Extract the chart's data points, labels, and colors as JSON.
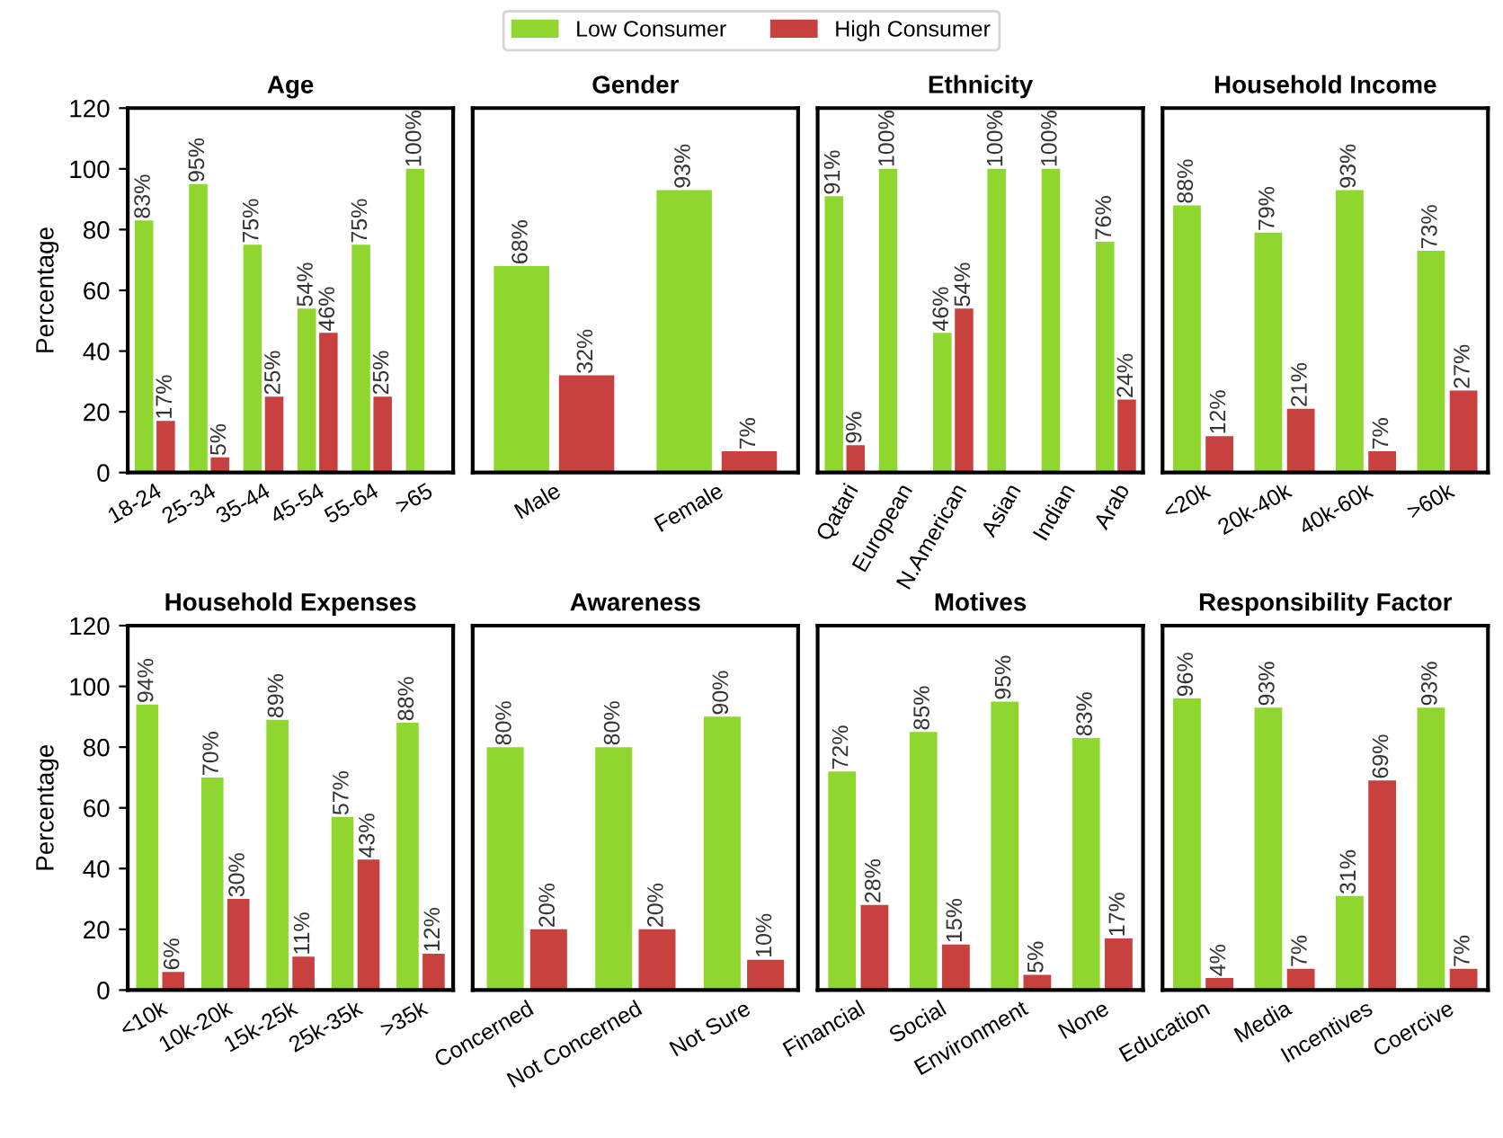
{
  "chart_data": [
    {
      "type": "bar",
      "title": "Age",
      "ylabel": "Percentage",
      "categories": [
        "18-24",
        "25-34",
        "35-44",
        "45-54",
        "55-64",
        ">65"
      ],
      "ylim": [
        0,
        120
      ],
      "yticks": [
        0,
        20,
        40,
        60,
        80,
        100,
        120
      ],
      "legend": "top",
      "grid": false,
      "series": [
        {
          "name": "Low Consumer",
          "color": "#8fd62e",
          "values": [
            83,
            95,
            75,
            54,
            75,
            100
          ],
          "value_labels": [
            "83%",
            "95%",
            "75%",
            "54%",
            "75%",
            "100%"
          ]
        },
        {
          "name": "High Consumer",
          "color": "#c8413f",
          "values": [
            17,
            5,
            25,
            46,
            25,
            0
          ],
          "value_labels": [
            "17%",
            "5%",
            "25%",
            "46%",
            "25%",
            null
          ]
        }
      ]
    },
    {
      "type": "bar",
      "title": "Gender",
      "categories": [
        "Male",
        "Female"
      ],
      "ylim": [
        0,
        120
      ],
      "tick_labels": "x",
      "grid": false,
      "series": [
        {
          "color": "#8fd62e",
          "values": [
            68,
            93
          ],
          "value_labels": [
            "68%",
            "93%"
          ]
        },
        {
          "color": "#c8413f",
          "values": [
            32,
            7
          ],
          "value_labels": [
            "32%",
            "7%"
          ]
        }
      ]
    },
    {
      "type": "bar",
      "title": "Ethnicity",
      "categories": [
        "Qatari",
        "European",
        "N.American",
        "Asian",
        "Indian",
        "Arab"
      ],
      "ylim": [
        0,
        120
      ],
      "tick_labels": "x",
      "grid": false,
      "series": [
        {
          "color": "#8fd62e",
          "values": [
            91,
            100,
            46,
            100,
            100,
            76
          ],
          "value_labels": [
            "91%",
            "100%",
            "46%",
            "100%",
            "100%",
            "76%"
          ]
        },
        {
          "color": "#c8413f",
          "values": [
            9,
            0,
            54,
            0,
            0,
            24
          ],
          "value_labels": [
            "9%",
            null,
            "54%",
            null,
            null,
            "24%"
          ]
        }
      ]
    },
    {
      "type": "bar",
      "title": "Household Income",
      "categories": [
        "<20k",
        "20k-40k",
        "40k-60k",
        ">60k"
      ],
      "ylim": [
        0,
        120
      ],
      "tick_labels": "x",
      "grid": false,
      "series": [
        {
          "color": "#8fd62e",
          "values": [
            88,
            79,
            93,
            73
          ],
          "value_labels": [
            "88%",
            "79%",
            "93%",
            "73%"
          ]
        },
        {
          "color": "#c8413f",
          "values": [
            12,
            21,
            7,
            27
          ],
          "value_labels": [
            "12%",
            "21%",
            "7%",
            "27%"
          ]
        }
      ]
    },
    {
      "type": "bar",
      "title": "Household Expenses",
      "ylabel": "Percentage",
      "categories": [
        "<10k",
        "10k-20k",
        "15k-25k",
        "25k-35k",
        ">35k"
      ],
      "ylim": [
        0,
        120
      ],
      "yticks": [
        0,
        20,
        40,
        60,
        80,
        100,
        120
      ],
      "grid": false,
      "series": [
        {
          "color": "#8fd62e",
          "values": [
            94,
            70,
            89,
            57,
            88
          ],
          "value_labels": [
            "94%",
            "70%",
            "89%",
            "57%",
            "88%"
          ]
        },
        {
          "color": "#c8413f",
          "values": [
            6,
            30,
            11,
            43,
            12
          ],
          "value_labels": [
            "6%",
            "30%",
            "11%",
            "43%",
            "12%"
          ]
        }
      ]
    },
    {
      "type": "bar",
      "title": "Awareness",
      "categories": [
        "Concerned",
        "Not Concerned",
        "Not Sure"
      ],
      "ylim": [
        0,
        120
      ],
      "tick_labels": "x",
      "grid": false,
      "series": [
        {
          "color": "#8fd62e",
          "values": [
            80,
            80,
            90
          ],
          "value_labels": [
            "80%",
            "80%",
            "90%"
          ]
        },
        {
          "color": "#c8413f",
          "values": [
            20,
            20,
            10
          ],
          "value_labels": [
            "20%",
            "20%",
            "10%"
          ]
        }
      ]
    },
    {
      "type": "bar",
      "title": "Motives",
      "categories": [
        "Financial",
        "Social",
        "Environment",
        "None"
      ],
      "ylim": [
        0,
        120
      ],
      "tick_labels": "x",
      "grid": false,
      "series": [
        {
          "color": "#8fd62e",
          "values": [
            72,
            85,
            95,
            83
          ],
          "value_labels": [
            "72%",
            "85%",
            "95%",
            "83%"
          ]
        },
        {
          "color": "#c8413f",
          "values": [
            28,
            15,
            5,
            17
          ],
          "value_labels": [
            "28%",
            "15%",
            "5%",
            "17%"
          ]
        }
      ]
    },
    {
      "type": "bar",
      "title": "Responsibility Factor",
      "categories": [
        "Education",
        "Media",
        "Incentives",
        "Coercive"
      ],
      "ylim": [
        0,
        120
      ],
      "tick_labels": "x",
      "grid": false,
      "series": [
        {
          "color": "#8fd62e",
          "values": [
            96,
            93,
            31,
            93
          ],
          "value_labels": [
            "96%",
            "93%",
            "31%",
            "93%"
          ]
        },
        {
          "color": "#c8413f",
          "values": [
            4,
            7,
            69,
            7
          ],
          "value_labels": [
            "4%",
            "7%",
            "69%",
            "7%"
          ]
        }
      ]
    }
  ]
}
